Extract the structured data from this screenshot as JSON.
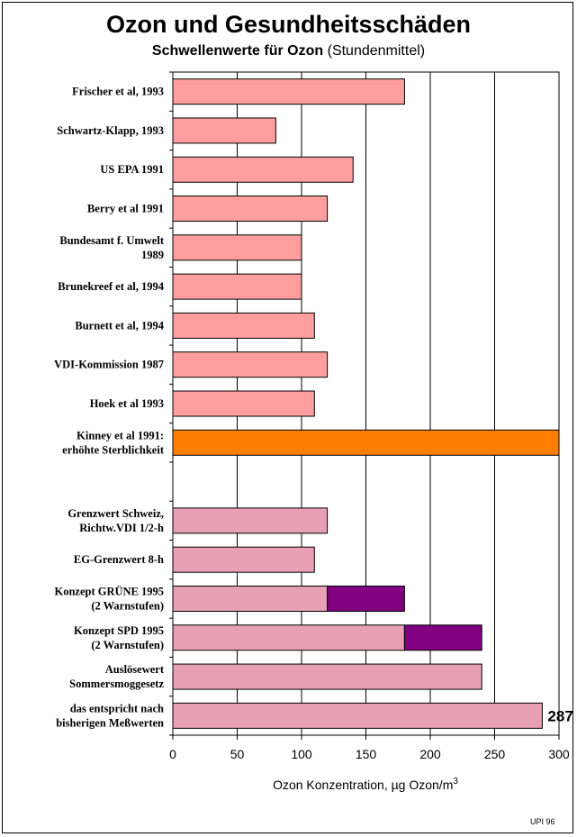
{
  "title": "Ozon und Gesundheitsschäden",
  "subtitle_bold": "Schwellenwerte für Ozon",
  "subtitle_rest": "(Stundenmittel)",
  "credit": "UPI 96",
  "chart_data": {
    "type": "bar",
    "orientation": "horizontal",
    "stacked": true,
    "xlabel": "Ozon Konzentration, µg Ozon/m",
    "xlabel_superscript": "3",
    "xlim": [
      0,
      300
    ],
    "xticks": [
      0,
      50,
      100,
      150,
      200,
      250,
      300
    ],
    "grid": "vertical",
    "categories": [
      [
        "Frischer et al, 1993"
      ],
      [
        "Schwartz-Klapp, 1993"
      ],
      [
        "US EPA 1991"
      ],
      [
        "Berry et al 1991"
      ],
      [
        "Bundesamt f. Umwelt",
        "1989"
      ],
      [
        "Brunekreef et al, 1994"
      ],
      [
        "Burnett et al, 1994"
      ],
      [
        "VDI-Kommission 1987"
      ],
      [
        "Hoek et al 1993"
      ],
      [
        "Kinney et al 1991:",
        "erhöhte Sterblichkeit"
      ],
      [
        ""
      ],
      [
        "Grenzwert Schweiz,",
        "Richtw.VDI 1/2-h"
      ],
      [
        "EG-Grenzwert 8-h"
      ],
      [
        "Konzept GRÜNE 1995",
        "(2 Warnstufen)"
      ],
      [
        "Konzept SPD 1995",
        "(2 Warnstufen)"
      ],
      [
        "Auslösewert",
        "Sommersmoggesetz"
      ],
      [
        "das entspricht nach",
        "bisherigen Meßwerten"
      ]
    ],
    "series": [
      {
        "name": "Schwellenwert",
        "values": [
          180,
          80,
          140,
          120,
          100,
          100,
          110,
          120,
          110,
          300,
          null,
          120,
          110,
          120,
          180,
          240,
          287
        ],
        "colors": [
          "#ff9e9e",
          "#ff9e9e",
          "#ff9e9e",
          "#ff9e9e",
          "#ff9e9e",
          "#ff9e9e",
          "#ff9e9e",
          "#ff9e9e",
          "#ff9e9e",
          "#ff8000",
          null,
          "#e8a0b4",
          "#e8a0b4",
          "#e8a0b4",
          "#e8a0b4",
          "#e8a0b4",
          "#e8a0b4"
        ]
      },
      {
        "name": "2. Warnstufe",
        "values": [
          0,
          0,
          0,
          0,
          0,
          0,
          0,
          0,
          0,
          0,
          null,
          0,
          0,
          60,
          60,
          0,
          0
        ],
        "color": "#800080"
      }
    ],
    "data_labels": [
      {
        "category_index": 16,
        "text": "287"
      }
    ]
  }
}
